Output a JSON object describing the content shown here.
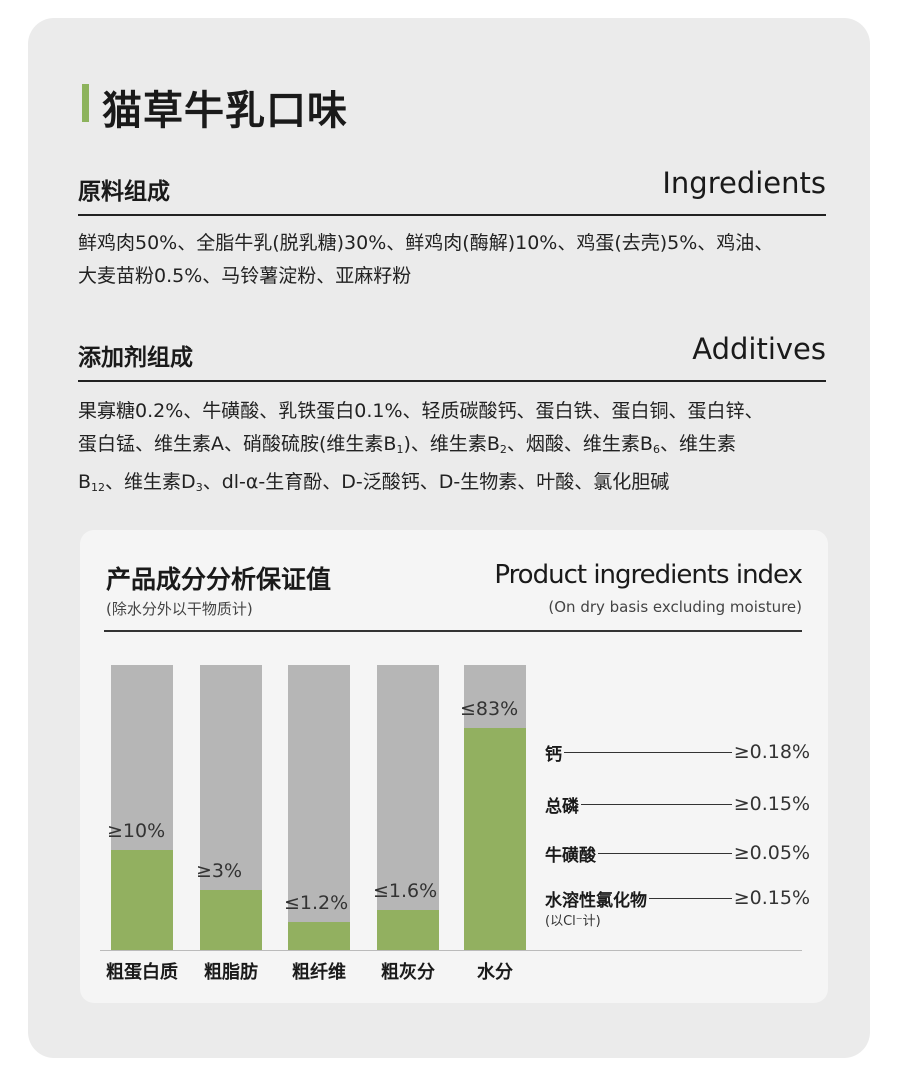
{
  "title": "猫草牛乳口味",
  "ingredients": {
    "title_cn": "原料组成",
    "title_en": "Ingredients",
    "lines": [
      "鲜鸡肉50%、全脂牛乳(脱乳糖)30%、鲜鸡肉(酶解)10%、鸡蛋(去壳)5%、鸡油、",
      "大麦苗粉0.5%、马铃薯淀粉、亚麻籽粉"
    ]
  },
  "additives": {
    "title_cn": "添加剂组成",
    "title_en": "Additives",
    "line1": "果寡糖0.2%、牛磺酸、乳铁蛋白0.1%、轻质碳酸钙、蛋白铁、蛋白铜、蛋白锌、",
    "line2a": "蛋白锰、维生素A、硝酸硫胺(维生素B",
    "sub1": "1",
    "line2b": ")、维生素B",
    "sub2": "2",
    "line2c": "、烟酸、维生素B",
    "sub3": "6",
    "line2d": "、维生素",
    "line3a": "B",
    "sub4": "12",
    "line3b": "、维生素D",
    "sub5": "3",
    "line3c": "、dl-α-生育酚、D-泛酸钙、D-生物素、叶酸、氯化胆碱"
  },
  "analysis": {
    "title_cn": "产品成分分析保证值",
    "subtitle_cn": "(除水分外以干物质计)",
    "title_en": "Product ingredients index",
    "subtitle_en": "(On dry basis excluding moisture)",
    "bars": [
      {
        "label": "粗蛋白质",
        "value": "≥10%",
        "fill": 0.35
      },
      {
        "label": "粗脂肪",
        "value": "≥3%",
        "fill": 0.21
      },
      {
        "label": "粗纤维",
        "value": "≤1.2%",
        "fill": 0.1
      },
      {
        "label": "粗灰分",
        "value": "≤1.6%",
        "fill": 0.14
      },
      {
        "label": "水分",
        "value": "≤83%",
        "fill": 0.78
      }
    ],
    "minerals": [
      {
        "name": "钙",
        "value": "≥0.18%"
      },
      {
        "name": "总磷",
        "value": "≥0.15%"
      },
      {
        "name": "牛磺酸",
        "value": "≥0.05%"
      },
      {
        "name": "水溶性氯化物",
        "value": "≥0.15%",
        "note": "(以Cl⁻计)"
      }
    ]
  },
  "colors": {
    "accent": "#8db35c",
    "bar_fill": "#92b060",
    "bar_bg": "#b6b6b6"
  }
}
